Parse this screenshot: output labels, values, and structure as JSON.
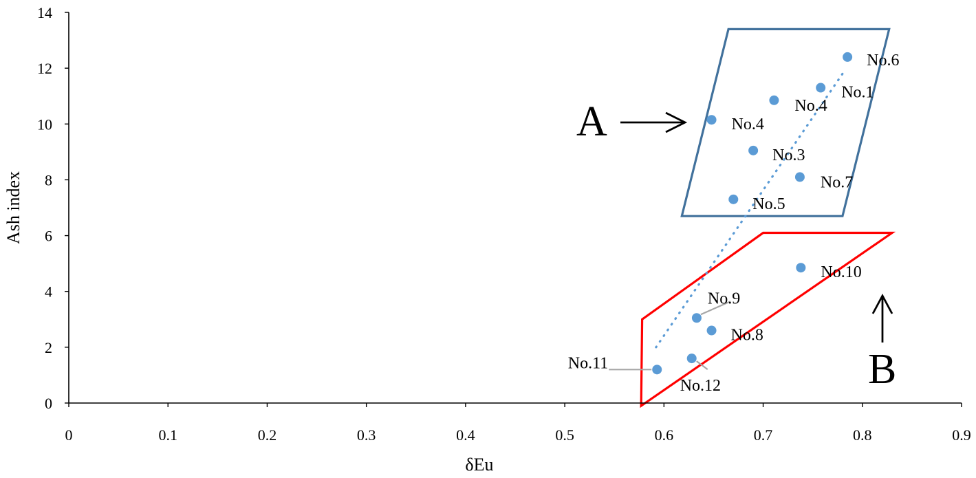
{
  "chart_data": {
    "type": "scatter",
    "title": "",
    "xlabel": "δEu",
    "ylabel": "Ash index",
    "xlim": [
      0,
      0.9
    ],
    "ylim": [
      0,
      14
    ],
    "x_ticks": [
      "0",
      "0.1",
      "0.2",
      "0.3",
      "0.4",
      "0.5",
      "0.6",
      "0.7",
      "0.8",
      "0.9"
    ],
    "y_ticks": [
      "0",
      "2",
      "4",
      "6",
      "8",
      "10",
      "12",
      "14"
    ],
    "grid": false,
    "legend": "none",
    "marker_color": "#5b9bd5",
    "points": [
      {
        "name": "No.6",
        "x": 0.785,
        "y": 12.4
      },
      {
        "name": "No.1",
        "x": 0.758,
        "y": 11.3
      },
      {
        "name": "No.4",
        "x": 0.711,
        "y": 10.85
      },
      {
        "name": "No.4",
        "x": 0.648,
        "y": 10.15
      },
      {
        "name": "No.3",
        "x": 0.69,
        "y": 9.05
      },
      {
        "name": "No.7",
        "x": 0.737,
        "y": 8.1
      },
      {
        "name": "No.5",
        "x": 0.67,
        "y": 7.3
      },
      {
        "name": "No.10",
        "x": 0.738,
        "y": 4.85
      },
      {
        "name": "No.9",
        "x": 0.633,
        "y": 3.05
      },
      {
        "name": "No.8",
        "x": 0.648,
        "y": 2.6
      },
      {
        "name": "No.12",
        "x": 0.628,
        "y": 1.6
      },
      {
        "name": "No.11",
        "x": 0.593,
        "y": 1.2
      }
    ],
    "trendline": {
      "style": "dotted",
      "color": "#5b9bd5",
      "from": {
        "x": 0.592,
        "y": 2.0
      },
      "to": {
        "x": 0.78,
        "y": 11.8
      }
    },
    "regions": [
      {
        "label": "A",
        "color": "#41719c",
        "vertices": [
          [
            0.665,
            13.4
          ],
          [
            0.827,
            13.4
          ],
          [
            0.78,
            6.7
          ],
          [
            0.618,
            6.7
          ]
        ]
      },
      {
        "label": "B",
        "color": "#ff0000",
        "vertices": [
          [
            0.578,
            3.0
          ],
          [
            0.577,
            -0.1
          ],
          [
            0.83,
            6.1
          ],
          [
            0.7,
            6.1
          ]
        ]
      }
    ]
  }
}
